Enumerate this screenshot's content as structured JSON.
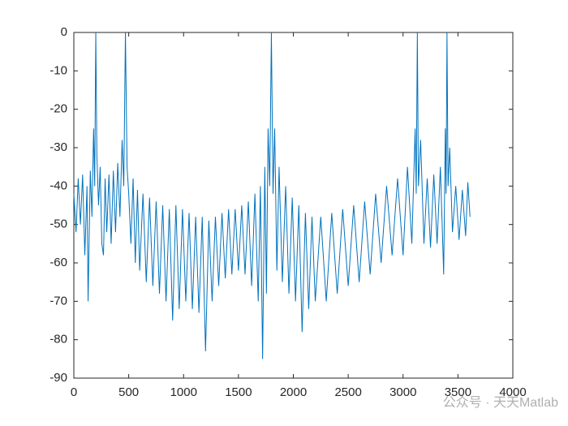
{
  "chart_data": {
    "type": "line",
    "series": [
      {
        "color": "#0072bd",
        "x": [
          0,
          20,
          40,
          60,
          80,
          100,
          120,
          130,
          150,
          165,
          180,
          190,
          200,
          210,
          225,
          240,
          255,
          270,
          285,
          300,
          320,
          340,
          360,
          380,
          400,
          420,
          440,
          455,
          470,
          485,
          500,
          520,
          540,
          560,
          580,
          600,
          630,
          660,
          690,
          720,
          750,
          780,
          810,
          840,
          870,
          900,
          930,
          960,
          990,
          1020,
          1050,
          1080,
          1110,
          1140,
          1170,
          1200,
          1230,
          1260,
          1290,
          1320,
          1350,
          1380,
          1410,
          1440,
          1470,
          1500,
          1530,
          1560,
          1590,
          1620,
          1650,
          1680,
          1700,
          1720,
          1740,
          1755,
          1770,
          1785,
          1800,
          1815,
          1830,
          1850,
          1870,
          1900,
          1930,
          1960,
          1990,
          2020,
          2050,
          2080,
          2110,
          2140,
          2170,
          2200,
          2250,
          2300,
          2350,
          2400,
          2450,
          2500,
          2550,
          2600,
          2650,
          2700,
          2750,
          2800,
          2850,
          2900,
          2950,
          3000,
          3040,
          3080,
          3110,
          3120,
          3130,
          3140,
          3160,
          3190,
          3220,
          3250,
          3280,
          3310,
          3340,
          3370,
          3385,
          3392,
          3400,
          3410,
          3425,
          3450,
          3480,
          3510,
          3540,
          3570,
          3590,
          3610
        ],
        "values": [
          -42,
          -52,
          -38,
          -50,
          -37,
          -58,
          -40,
          -70,
          -36,
          -48,
          -25,
          -40,
          0,
          -32,
          -45,
          -35,
          -55,
          -58,
          -38,
          -52,
          -37,
          -55,
          -36,
          -52,
          -34,
          -48,
          -28,
          -40,
          0,
          -35,
          -42,
          -55,
          -38,
          -60,
          -41,
          -62,
          -42,
          -65,
          -43,
          -66,
          -44,
          -68,
          -45,
          -70,
          -46,
          -75,
          -45,
          -72,
          -46,
          -70,
          -47,
          -72,
          -48,
          -73,
          -48,
          -83,
          -49,
          -70,
          -48,
          -66,
          -47,
          -64,
          -46,
          -63,
          -46,
          -62,
          -45,
          -63,
          -44,
          -66,
          -42,
          -70,
          -40,
          -85,
          -35,
          -68,
          -25,
          -40,
          0,
          -42,
          -25,
          -62,
          -35,
          -65,
          -40,
          -68,
          -43,
          -70,
          -45,
          -78,
          -47,
          -72,
          -48,
          -70,
          -48,
          -70,
          -47,
          -68,
          -46,
          -66,
          -45,
          -65,
          -44,
          -63,
          -42,
          -60,
          -40,
          -58,
          -38,
          -58,
          -35,
          -55,
          -25,
          -42,
          0,
          -40,
          -28,
          -55,
          -38,
          -56,
          -37,
          -55,
          -35,
          -63,
          -25,
          -42,
          0,
          -40,
          -30,
          -52,
          -40,
          -54,
          -41,
          -53,
          -39,
          -48
        ]
      }
    ],
    "xlim": [
      0,
      4000
    ],
    "ylim": [
      -90,
      0
    ],
    "xticks": [
      0,
      500,
      1000,
      1500,
      2000,
      2500,
      3000,
      3500,
      4000
    ],
    "yticks": [
      0,
      -10,
      -20,
      -30,
      -40,
      -50,
      -60,
      -70,
      -80,
      -90
    ],
    "watermark": "公众号 · 天天Matlab"
  }
}
